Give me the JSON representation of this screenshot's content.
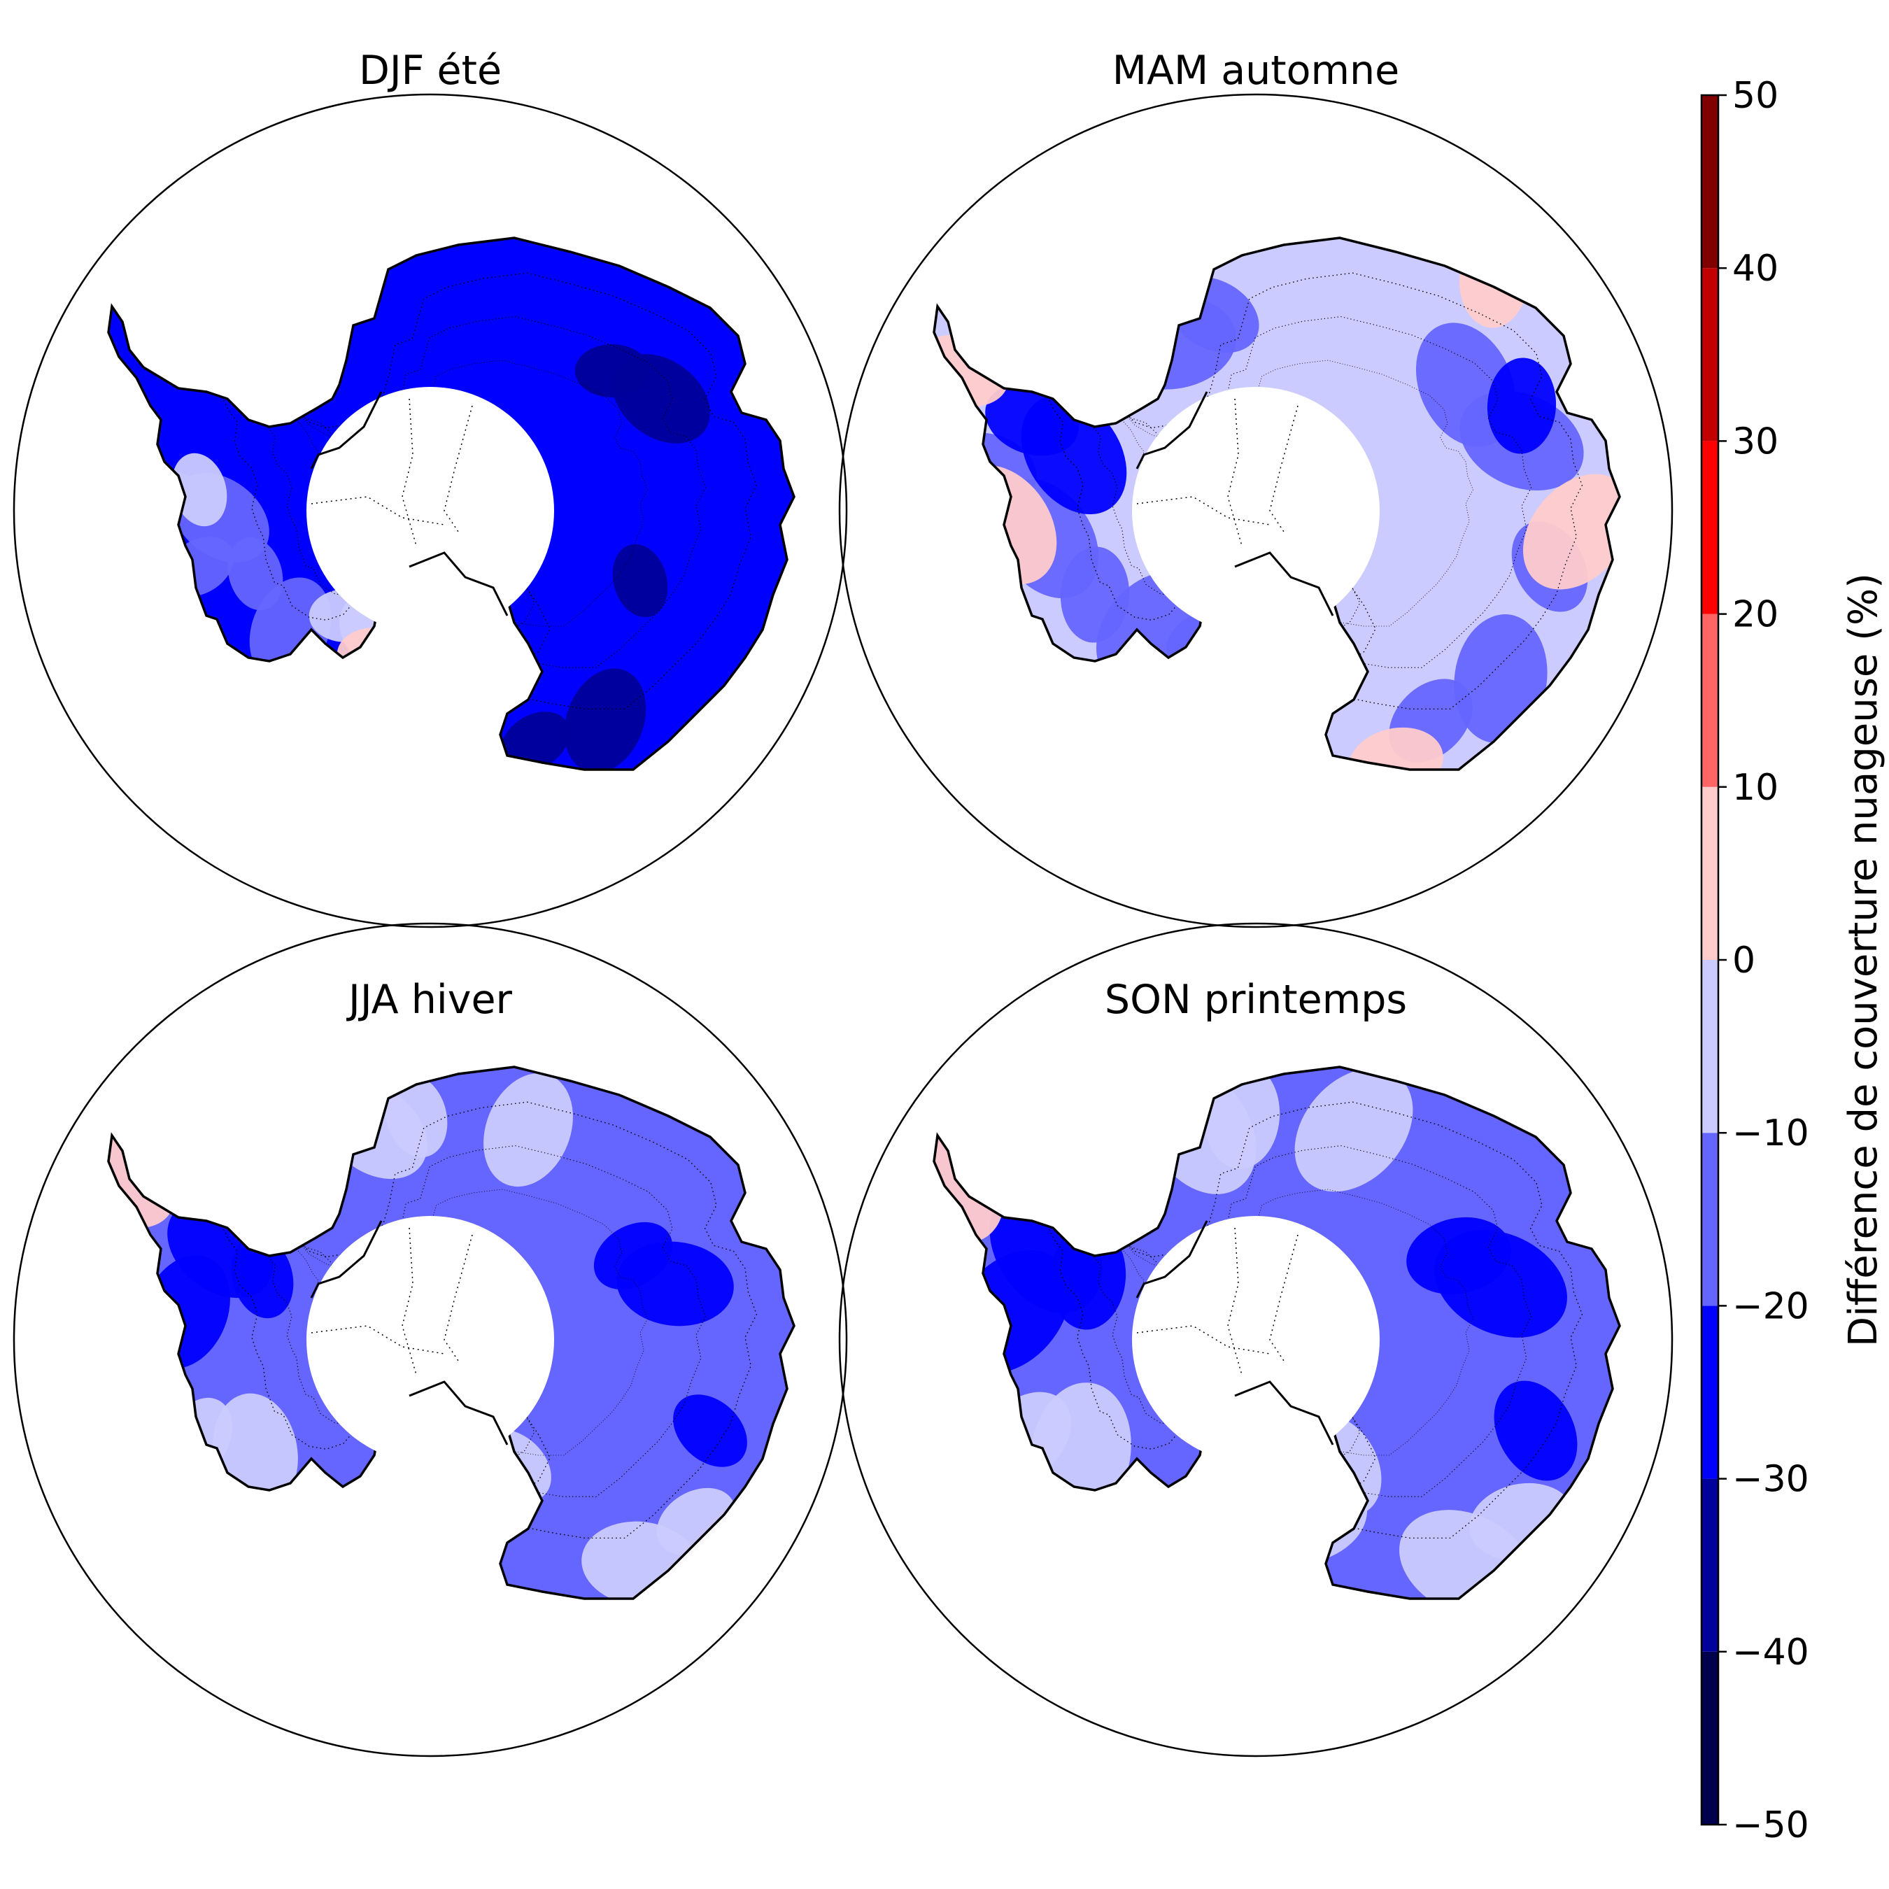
{
  "panels": [
    {
      "title": "DJF été",
      "dominant_class": -25,
      "shading": "strong"
    },
    {
      "title": "MAM automne",
      "dominant_class": -5,
      "shading": "light"
    },
    {
      "title": "JJA hiver",
      "dominant_class": -15,
      "shading": "medium"
    },
    {
      "title": "SON printemps",
      "dominant_class": -15,
      "shading": "medium"
    }
  ],
  "colorbar": {
    "label": "Différence de couverture nuageuse (%)",
    "ticks": [
      "50",
      "40",
      "30",
      "20",
      "10",
      "0",
      "−10",
      "−20",
      "−30",
      "−40",
      "−50"
    ],
    "min": -50,
    "max": 50,
    "bounds": [
      -50,
      -40,
      -30,
      -20,
      -10,
      0,
      10,
      20,
      30,
      40,
      50
    ],
    "colors": [
      "#00004c",
      "#00009a",
      "#0000ff",
      "#6565ff",
      "#cbcbff",
      "#ffcbcb",
      "#ff6565",
      "#ff0000",
      "#c20000",
      "#800000"
    ]
  },
  "legend_colors": {
    "outline": "#000000",
    "pole_hole": "#ffffff"
  }
}
